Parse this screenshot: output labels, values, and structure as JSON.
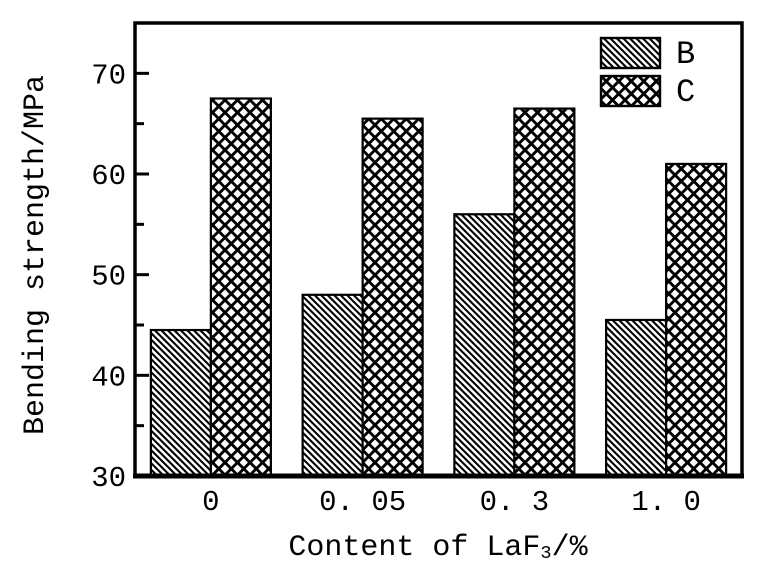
{
  "figure": {
    "background": "#ffffff",
    "foreground": "#000000"
  },
  "chart_data": {
    "type": "bar",
    "title": "",
    "categories": [
      "0",
      "0.05",
      "0.3",
      "1.0"
    ],
    "category_labels": [
      "0",
      "0. 05",
      "0. 3",
      "1. 0"
    ],
    "series": [
      {
        "name": "B",
        "hatch": "diagonal-hatch",
        "values": [
          44.5,
          48.0,
          56.0,
          45.5
        ]
      },
      {
        "name": "C",
        "hatch": "cross-hatch",
        "values": [
          67.5,
          65.5,
          66.5,
          61.0
        ]
      }
    ],
    "ylabel": "Bending strength/MPa",
    "xlabel_parts": {
      "prefix": "Content of LaF",
      "subscript": "3",
      "suffix": "/%"
    },
    "ylim": [
      30,
      75
    ],
    "yticks_major": [
      30,
      40,
      50,
      60,
      70
    ],
    "ytick_labels": [
      "30",
      "40",
      "50",
      "60",
      "70"
    ],
    "yticks_minor": [
      35,
      45,
      55,
      65
    ],
    "grid": "off",
    "legend_position": "top-right",
    "colors": {
      "bar_fill": "#ffffff",
      "bar_stroke": "#000000",
      "axis": "#000000"
    }
  }
}
